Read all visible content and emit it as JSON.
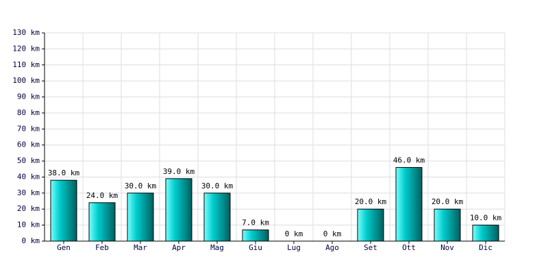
{
  "chart_data": {
    "type": "bar",
    "categories": [
      "Gen",
      "Feb",
      "Mar",
      "Apr",
      "Mag",
      "Giu",
      "Lug",
      "Ago",
      "Set",
      "Ott",
      "Nov",
      "Dic"
    ],
    "values": [
      38,
      24,
      30,
      39,
      30,
      7,
      0,
      0,
      20,
      46,
      20,
      10
    ],
    "value_labels": [
      "38.0 km",
      "24.0 km",
      "30.0 km",
      "39.0 km",
      "30.0 km",
      "7.0 km",
      "0 km",
      "0 km",
      "20.0 km",
      "46.0 km",
      "20.0 km",
      "10.0 km"
    ],
    "color": "#00cccc",
    "ylim": [
      0,
      130
    ],
    "yticks": [
      {
        "value": 0,
        "label": "0 km"
      },
      {
        "value": 10,
        "label": "10 km"
      },
      {
        "value": 20,
        "label": "20 km"
      },
      {
        "value": 30,
        "label": "30 km"
      },
      {
        "value": 40,
        "label": "40 km"
      },
      {
        "value": 50,
        "label": "50 km"
      },
      {
        "value": 60,
        "label": "60 km"
      },
      {
        "value": 70,
        "label": "70 km"
      },
      {
        "value": 80,
        "label": "80 km"
      },
      {
        "value": 90,
        "label": "90 km"
      },
      {
        "value": 100,
        "label": "100 km"
      },
      {
        "value": 110,
        "label": "110 km"
      },
      {
        "value": 120,
        "label": "120 km"
      },
      {
        "value": 130,
        "label": "130 km"
      }
    ],
    "grid": true
  }
}
